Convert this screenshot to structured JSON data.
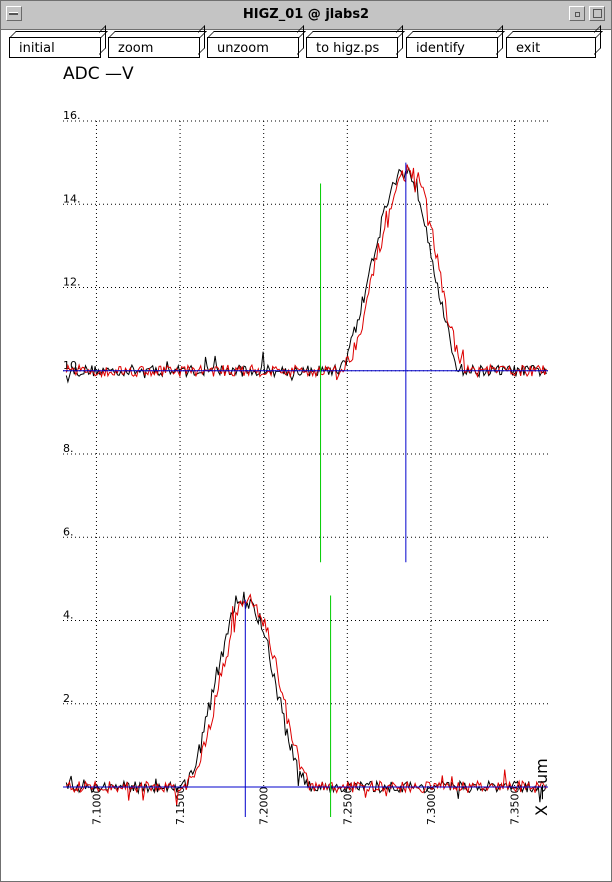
{
  "window": {
    "title": "HIGZ_01 @ jlabs2"
  },
  "menu": [
    {
      "id": "initial",
      "label": "initial"
    },
    {
      "id": "zoom",
      "label": "zoom"
    },
    {
      "id": "unzoom",
      "label": "unzoom"
    },
    {
      "id": "to-higz-ps",
      "label": "to higz.ps"
    },
    {
      "id": "identify",
      "label": "identify"
    },
    {
      "id": "exit",
      "label": "exit"
    }
  ],
  "colors": {
    "black_trace": "#000000",
    "red_trace": "#dd0000",
    "center_line": "#0000cc",
    "marker_line": "#00cc00",
    "grid": "#000000"
  },
  "chart_data": {
    "type": "line",
    "ylabel": "ADC   —V",
    "xlabel": "X —um",
    "ylim": [
      0,
      16
    ],
    "xlim": [
      7.08,
      7.37
    ],
    "y_ticks": [
      "2.",
      "4.",
      "6.",
      "8.",
      "10.",
      "12.",
      "14.",
      "16."
    ],
    "x_ticks": [
      "7.1000",
      "7.1500",
      "7.2000",
      "7.2500",
      "7.3000",
      "7.3500"
    ],
    "grid": true,
    "upper_trace": {
      "baseline": 10.0,
      "rise_start": 7.242,
      "peak_x": 7.285,
      "peak_y": 14.8,
      "fall_end": 7.32,
      "center_marker_x": 7.285,
      "green_marker_x": 7.234,
      "series": [
        {
          "color": "black"
        },
        {
          "color": "red"
        }
      ]
    },
    "lower_trace": {
      "baseline": 0.0,
      "rise_start": 7.15,
      "peak_x": 7.189,
      "peak_y": 4.5,
      "fall_end": 7.228,
      "center_marker_x": 7.189,
      "green_marker_x": 7.24,
      "series": [
        {
          "color": "black"
        },
        {
          "color": "red"
        }
      ]
    }
  }
}
